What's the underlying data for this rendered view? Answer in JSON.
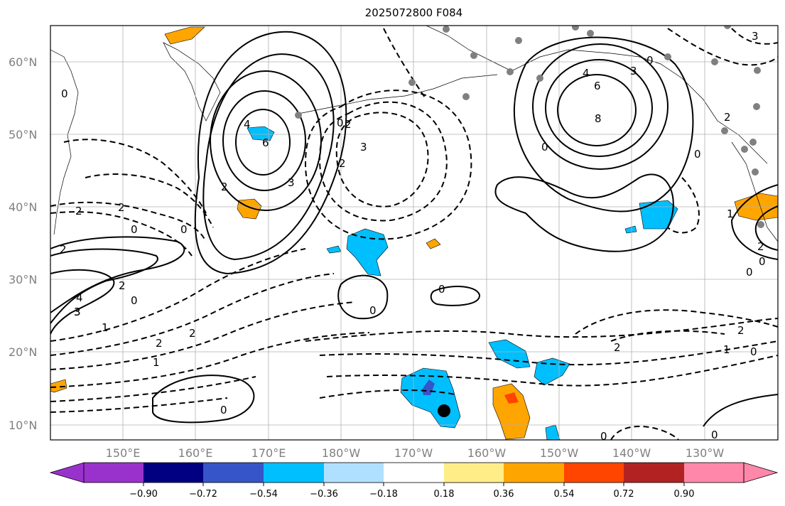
{
  "title": "2025072800 F084",
  "map": {
    "lat_labels": [
      "60°N",
      "50°N",
      "40°N",
      "30°N",
      "20°N",
      "10°N"
    ],
    "lon_labels": [
      "150°E",
      "160°E",
      "170°E",
      "180°W",
      "170°W",
      "160°W",
      "150°W",
      "140°W",
      "130°W"
    ],
    "contour_labels": [
      "2",
      "2",
      "0",
      "4",
      "6",
      "2",
      "3",
      "0",
      "3",
      "2",
      "2",
      "0",
      "2",
      "3",
      "0",
      "4",
      "3",
      "2",
      "0",
      "1",
      "2",
      "2",
      "1",
      "0",
      "0",
      "0",
      "0",
      "2",
      "2",
      "1",
      "0",
      "2",
      "4",
      "6",
      "8",
      "3",
      "0",
      "0",
      "3",
      "1",
      "0",
      "2",
      "0",
      "0",
      "0"
    ],
    "colors": {
      "contour": "#000000",
      "grid": "#b0b0b0",
      "marker_gray": "#808080",
      "marker_black": "#000000"
    }
  },
  "colorbar": {
    "ticks": [
      "−0.90",
      "−0.72",
      "−0.54",
      "−0.36",
      "−0.18",
      "0.18",
      "0.36",
      "0.54",
      "0.72",
      "0.90"
    ],
    "colors": [
      "#9932cc",
      "#000080",
      "#3655c8",
      "#00bfff",
      "#b0e0ff",
      "#ffffff",
      "#ffee88",
      "#ffa500",
      "#ff4500",
      "#b22222",
      "#ff88aa"
    ]
  }
}
